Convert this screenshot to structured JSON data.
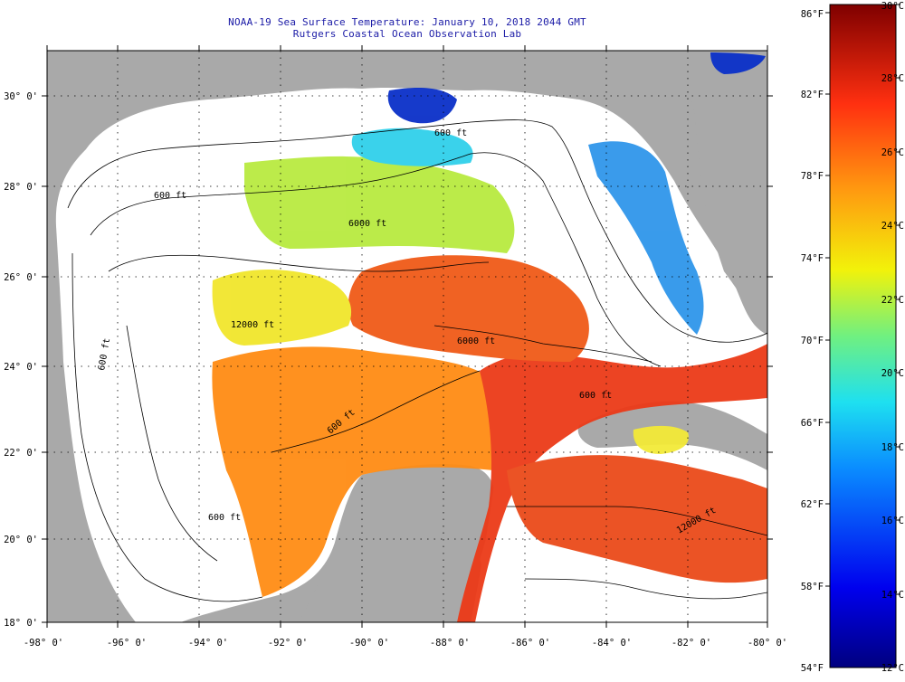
{
  "title": {
    "line1": "NOAA-19 Sea Surface Temperature:  January 10, 2018 2044 GMT",
    "line2": "Rutgers Coastal Ocean Observation Lab"
  },
  "axes": {
    "longitudes": [
      "-98° 0'",
      "-96° 0'",
      "-94° 0'",
      "-92° 0'",
      "-90° 0'",
      "-88° 0'",
      "-86° 0'",
      "-84° 0'",
      "-82° 0'",
      "-80° 0'"
    ],
    "latitudes": [
      "30° 0'",
      "28° 0'",
      "26° 0'",
      "24° 0'",
      "22° 0'",
      "20° 0'",
      "18° 0'"
    ]
  },
  "contours": {
    "labels": [
      "600 ft",
      "6000 ft",
      "12000 ft",
      "6000 ft",
      "600 ft",
      "600 ft",
      "600 ft",
      "600 ft",
      "12000 ft",
      "600 ft"
    ]
  },
  "colorbar": {
    "fahrenheit": [
      "86°F",
      "82°F",
      "78°F",
      "74°F",
      "70°F",
      "66°F",
      "62°F",
      "58°F",
      "54°F"
    ],
    "celsius": [
      "30°C",
      "28°C",
      "26°C",
      "24°C",
      "22°C",
      "20°C",
      "18°C",
      "16°C",
      "14°C",
      "12°C"
    ]
  },
  "colors": {
    "land": "#a9a9a9",
    "no_data": "#ffffff",
    "hot": "#e8321a",
    "warm": "#ff8a14",
    "mild": "#f3e52a",
    "cool": "#40c0e8",
    "cold": "#0b1aa0",
    "title": "#1a1aa6"
  }
}
